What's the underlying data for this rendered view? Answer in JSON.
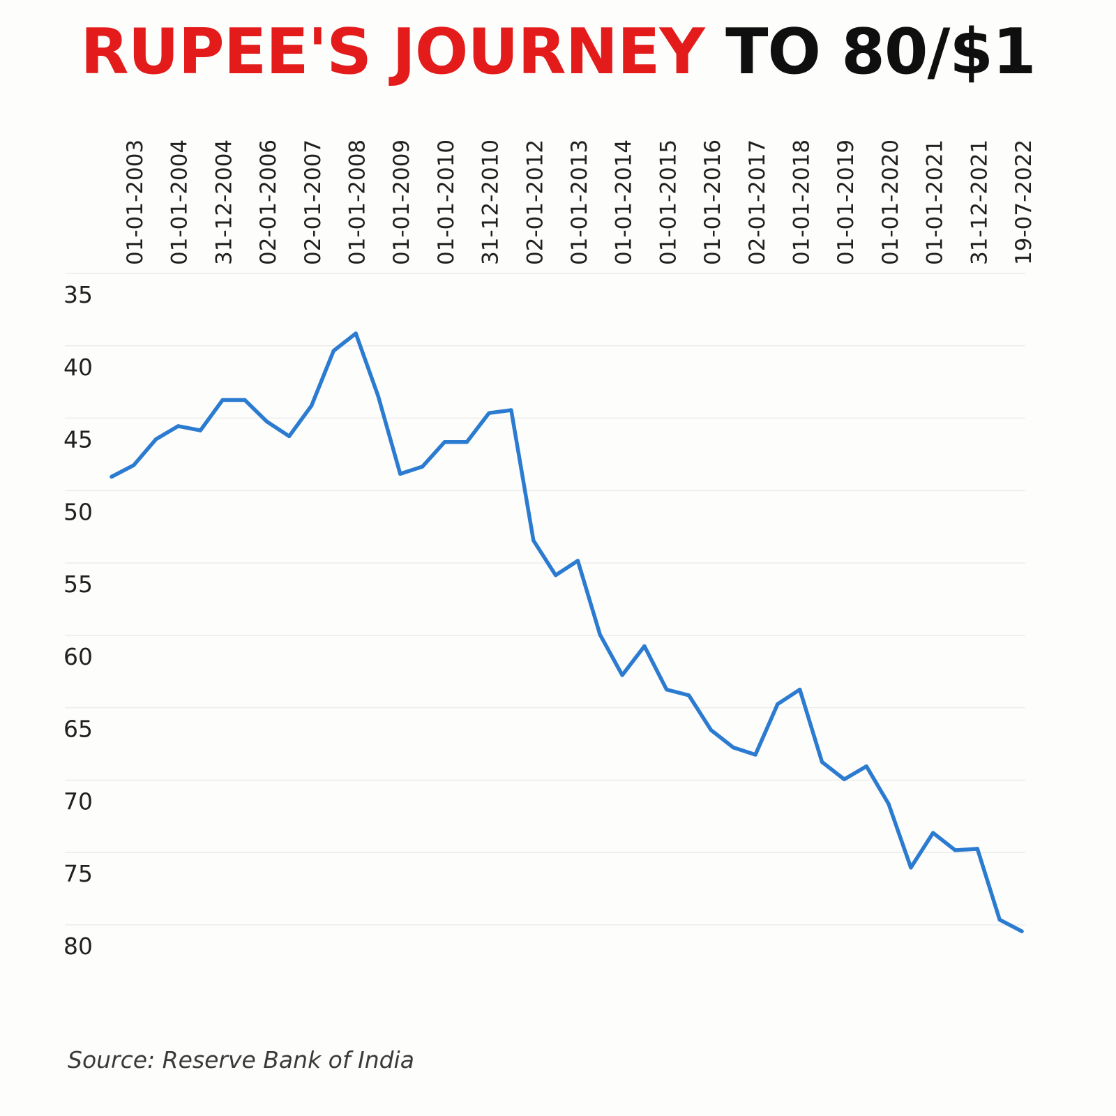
{
  "title": {
    "part1": "RUPEE'S JOURNEY",
    "part2": "TO 80/$1",
    "part1_color": "#e31b1b",
    "part2_color": "#0f0f0f"
  },
  "source": "Source: Reserve Bank of India",
  "chart_data": {
    "type": "line",
    "title": "RUPEE'S JOURNEY TO 80/$1",
    "xlabel": "",
    "ylabel": "",
    "y_axis_inverted": true,
    "ylim": [
      35,
      80
    ],
    "yticks": [
      35,
      40,
      45,
      50,
      55,
      60,
      65,
      70,
      75,
      80
    ],
    "x_tick_labels": [
      "01-01-2003",
      "01-01-2004",
      "31-12-2004",
      "02-01-2006",
      "02-01-2007",
      "01-01-2008",
      "01-01-2009",
      "01-01-2010",
      "31-12-2010",
      "02-01-2012",
      "01-01-2013",
      "01-01-2014",
      "01-01-2015",
      "01-01-2016",
      "02-01-2017",
      "01-01-2018",
      "01-01-2019",
      "01-01-2020",
      "01-01-2021",
      "31-12-2021",
      "19-07-2022"
    ],
    "x_tick_orientation": "vertical",
    "x_axis_position": "top",
    "grid": true,
    "legend": "none",
    "line_color": "#2b7bd0",
    "series": [
      {
        "name": "",
        "values": [
          47.6,
          46.8,
          45.0,
          44.1,
          44.4,
          42.3,
          42.3,
          43.8,
          44.8,
          42.7,
          38.9,
          37.7,
          42.0,
          47.4,
          46.9,
          45.2,
          45.2,
          43.2,
          43.0,
          52.0,
          54.4,
          53.4,
          58.5,
          61.3,
          59.3,
          62.3,
          62.7,
          65.1,
          66.3,
          66.8,
          63.3,
          62.3,
          67.3,
          68.5,
          67.6,
          70.2,
          74.6,
          72.2,
          73.4,
          73.3,
          78.2,
          79.0
        ]
      }
    ]
  }
}
